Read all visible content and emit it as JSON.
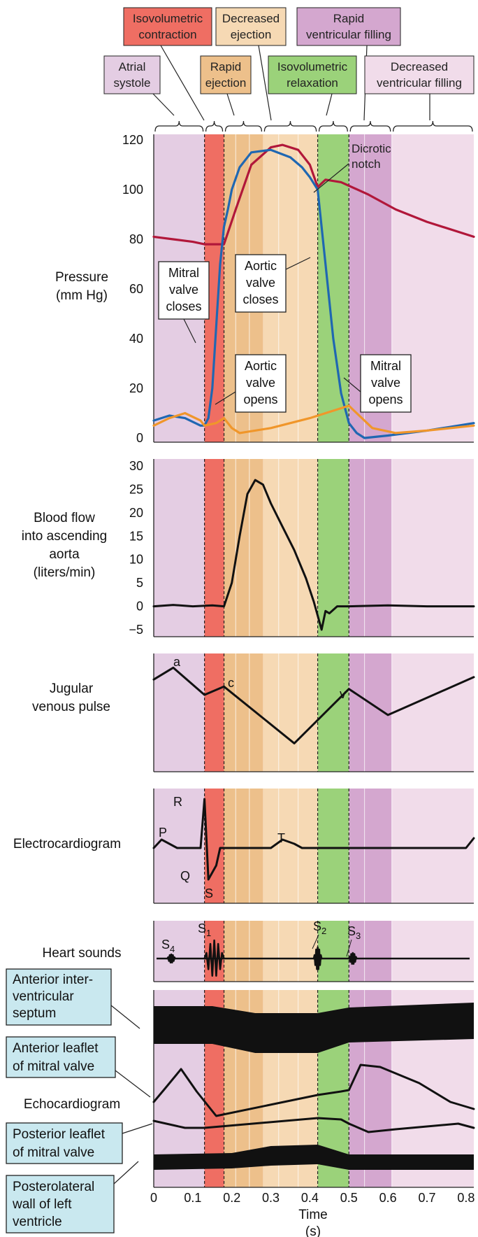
{
  "phases": [
    {
      "label": "Atrial systole",
      "color": "#e4cde3",
      "t0": 0.0,
      "t1": 0.13
    },
    {
      "label": "Isovolumetric contraction",
      "color": "#ef6e63",
      "t0": 0.13,
      "t1": 0.18
    },
    {
      "label": "Rapid ejection",
      "color": "#edc08b",
      "t0": 0.18,
      "t1": 0.28
    },
    {
      "label": "Decreased ejection",
      "color": "#f6d9b4",
      "t0": 0.28,
      "t1": 0.42
    },
    {
      "label": "Isovolumetric relaxation",
      "color": "#9bd27a",
      "t0": 0.42,
      "t1": 0.5
    },
    {
      "label": "Rapid ventricular filling",
      "color": "#d4a7cf",
      "t0": 0.5,
      "t1": 0.61
    },
    {
      "label": "Decreased ventricular filling",
      "color": "#f1dcea",
      "t0": 0.61,
      "t1": 0.82
    }
  ],
  "phase_labels": {
    "isovolumetric_contraction": [
      "Isovolumetric",
      "contraction"
    ],
    "decreased_ejection": [
      "Decreased",
      "ejection"
    ],
    "rapid_ventricular_filling": [
      "Rapid",
      "ventricular filling"
    ],
    "atrial_systole": [
      "Atrial",
      "systole"
    ],
    "rapid_ejection": [
      "Rapid",
      "ejection"
    ],
    "isovolumetric_relaxation": [
      "Isovolumetric",
      "relaxation"
    ],
    "decreased_ventricular_filling": [
      "Decreased",
      "ventricular filling"
    ]
  },
  "panels": {
    "pressure": {
      "label": [
        "Pressure",
        "(mm Hg)"
      ],
      "ticks": [
        "120",
        "100",
        "80",
        "60",
        "40",
        "20",
        "0"
      ],
      "annotations": {
        "dicrotic_notch": [
          "Dicrotic",
          "notch"
        ],
        "mitral_closes": [
          "Mitral",
          "valve",
          "closes"
        ],
        "aortic_closes": [
          "Aortic",
          "valve",
          "closes"
        ],
        "aortic_opens": [
          "Aortic",
          "valve",
          "opens"
        ],
        "mitral_opens": [
          "Mitral",
          "valve",
          "opens"
        ]
      },
      "colors": {
        "aortic": "#b1173a",
        "ventricular": "#1f67b2",
        "atrial": "#f0962a"
      }
    },
    "flow": {
      "label": [
        "Blood flow",
        "into ascending",
        "aorta",
        "(liters/min)"
      ],
      "ticks": [
        "30",
        "25",
        "20",
        "15",
        "10",
        "5",
        "0",
        "−5"
      ]
    },
    "jugular": {
      "label": [
        "Jugular",
        "venous pulse"
      ],
      "wave_labels": {
        "a": "a",
        "c": "c",
        "v": "v"
      }
    },
    "ecg": {
      "label": "Electrocardiogram",
      "wave_labels": {
        "P": "P",
        "R": "R",
        "Q": "Q",
        "S": "S",
        "T": "T"
      }
    },
    "sounds": {
      "label": "Heart sounds",
      "s4": {
        "base": "S",
        "sub": "4"
      },
      "s1": {
        "base": "S",
        "sub": "1"
      },
      "s2": {
        "base": "S",
        "sub": "2"
      },
      "s3": {
        "base": "S",
        "sub": "3"
      }
    },
    "echo": {
      "label": "Echocardiogram",
      "boxes": {
        "septum": [
          "Anterior inter-",
          "ventricular",
          "septum"
        ],
        "anterior_leaflet": [
          "Anterior leaflet",
          "of mitral valve"
        ],
        "posterior_leaflet": [
          "Posterior leaflet",
          "of mitral valve"
        ],
        "posterolateral_wall": [
          "Posterolateral",
          "wall of left",
          "ventricle"
        ]
      }
    }
  },
  "time_axis": {
    "ticks": [
      "0",
      "0.1",
      "0.2",
      "0.3",
      "0.4",
      "0.5",
      "0.6",
      "0.7",
      "0.8"
    ],
    "label": "Time",
    "unit": "(s)"
  },
  "chart_data": {
    "type": "line",
    "xlabel": "Time (s)",
    "xlim": [
      0,
      0.82
    ],
    "pressure": {
      "ylabel": "Pressure (mm Hg)",
      "ylim": [
        0,
        120
      ],
      "series": [
        {
          "x": [
            0,
            0.05,
            0.1,
            0.13,
            0.18,
            0.21,
            0.25,
            0.3,
            0.33,
            0.37,
            0.4,
            0.42,
            0.44,
            0.48,
            0.55,
            0.62,
            0.7,
            0.82
          ],
          "y": [
            81,
            80,
            79,
            78,
            78,
            92,
            110,
            117,
            118,
            116,
            110,
            101,
            104,
            103,
            98,
            92,
            87,
            81
          ]
        },
        {
          "x": [
            0,
            0.04,
            0.08,
            0.12,
            0.13,
            0.14,
            0.15,
            0.16,
            0.17,
            0.18,
            0.19,
            0.2,
            0.22,
            0.25,
            0.3,
            0.35,
            0.38,
            0.4,
            0.42,
            0.44,
            0.46,
            0.48,
            0.5,
            0.52,
            0.54,
            0.6,
            0.7,
            0.82
          ],
          "y": [
            7,
            9,
            8,
            5,
            5,
            8,
            20,
            45,
            70,
            85,
            92,
            100,
            109,
            115,
            116,
            113,
            109,
            105,
            100,
            70,
            40,
            18,
            6,
            2,
            0,
            1,
            3,
            6
          ]
        },
        {
          "x": [
            0,
            0.04,
            0.08,
            0.12,
            0.13,
            0.16,
            0.18,
            0.2,
            0.22,
            0.3,
            0.4,
            0.5,
            0.52,
            0.56,
            0.62,
            0.7,
            0.82
          ],
          "y": [
            5,
            8,
            10,
            7,
            5,
            6,
            8,
            4,
            2,
            4,
            8,
            13,
            10,
            4,
            2,
            3,
            5
          ]
        }
      ]
    },
    "flow": {
      "ylabel": "Blood flow into ascending aorta (liters/min)",
      "ylim": [
        -5,
        30
      ],
      "x": [
        0,
        0.05,
        0.1,
        0.15,
        0.18,
        0.2,
        0.22,
        0.24,
        0.26,
        0.28,
        0.3,
        0.33,
        0.36,
        0.39,
        0.41,
        0.42,
        0.43,
        0.44,
        0.45,
        0.47,
        0.5,
        0.6,
        0.7,
        0.82
      ],
      "y": [
        0,
        0.3,
        0,
        0.2,
        0,
        5,
        15,
        24,
        27,
        26,
        22,
        17,
        12,
        6,
        1,
        -2,
        -5,
        -1,
        -1.5,
        0,
        0,
        0.2,
        0,
        0
      ]
    }
  }
}
